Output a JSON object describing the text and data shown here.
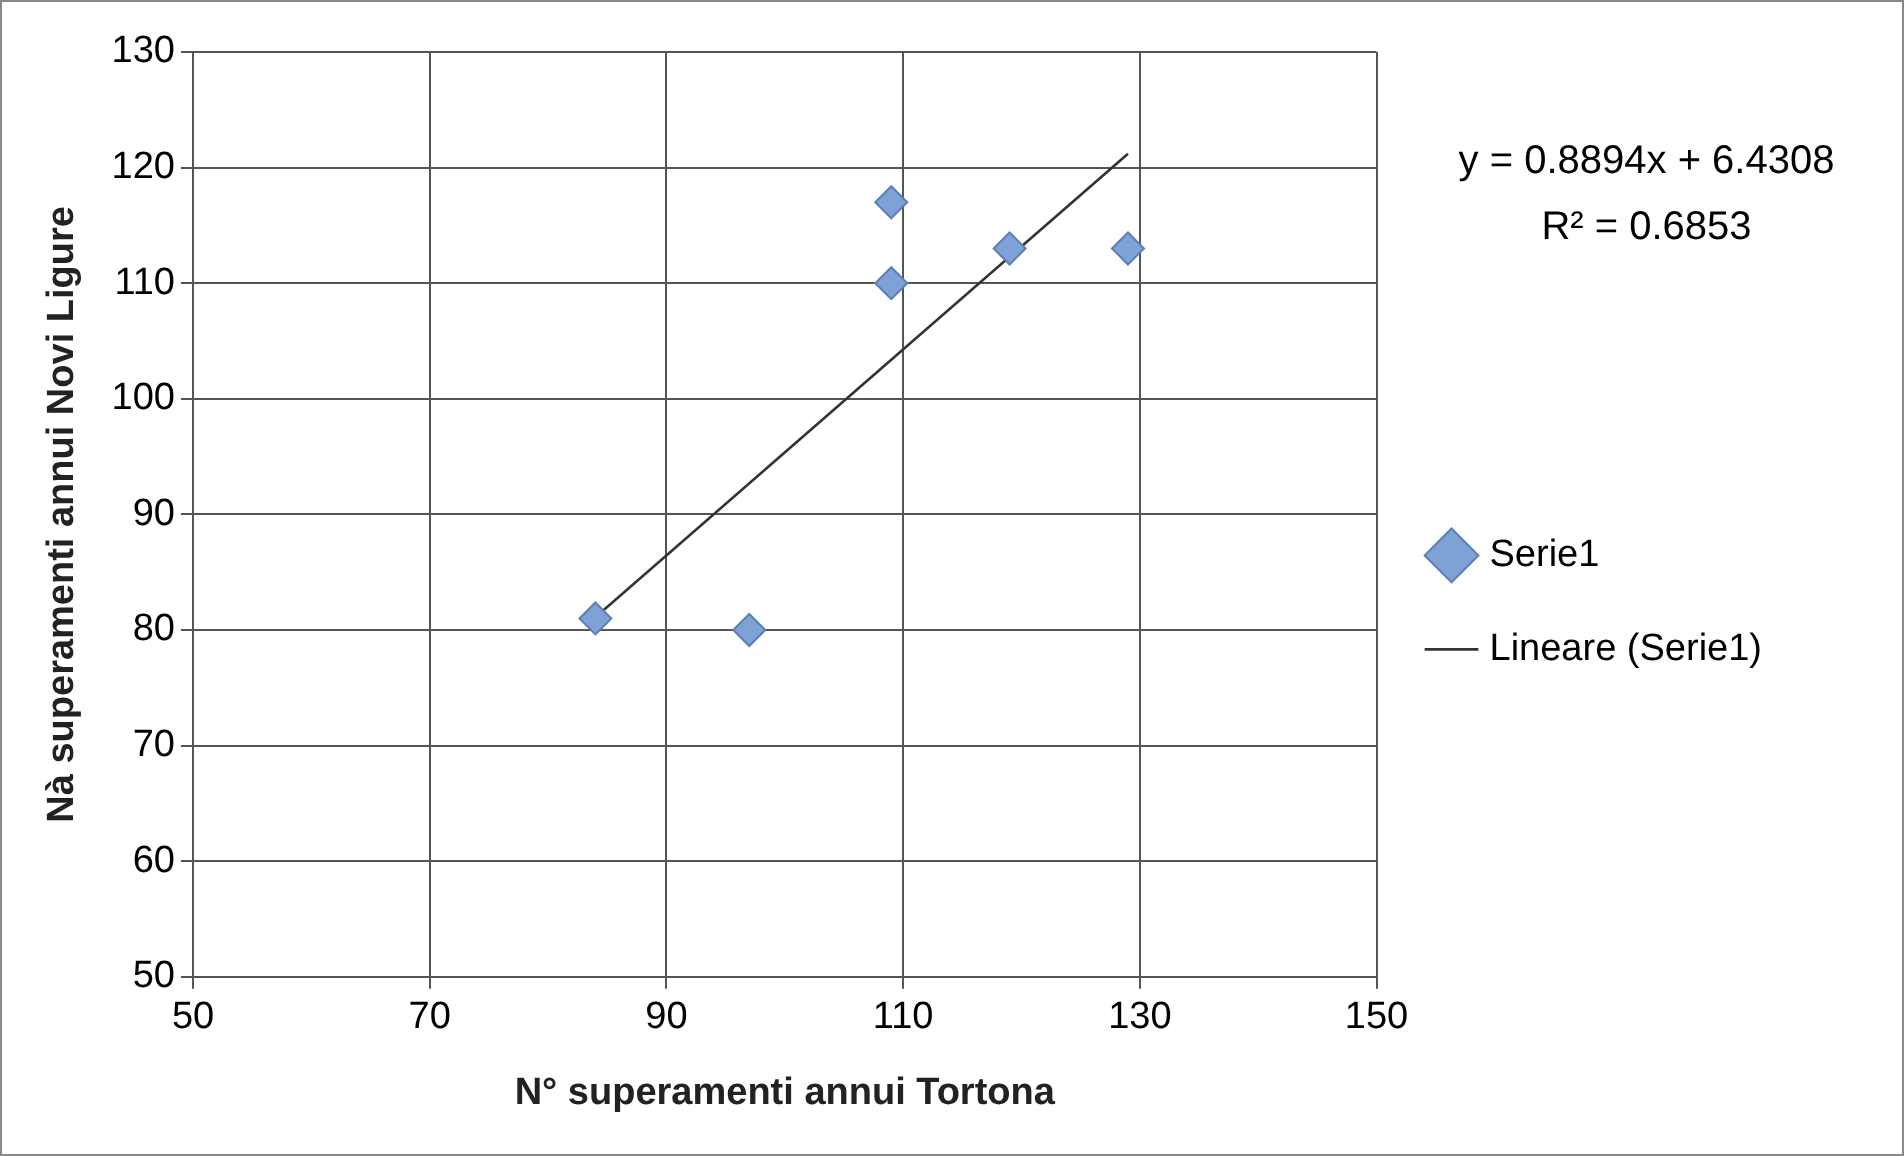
{
  "chart_data": {
    "type": "scatter",
    "xlabel": "N° superamenti annui Tortona",
    "ylabel": "Nà superamenti annui Novi Ligure",
    "xlim": [
      50,
      150
    ],
    "xticks": [
      50,
      70,
      90,
      110,
      130,
      150
    ],
    "ylim": [
      50,
      130
    ],
    "yticks": [
      50,
      60,
      70,
      80,
      90,
      100,
      110,
      120,
      130
    ],
    "grid": true,
    "legend": "right",
    "annotations": [
      "y = 0.8894x + 6.4308",
      "R² = 0.6853"
    ],
    "series": [
      {
        "name": "Serie1",
        "type": "scatter",
        "color": "#7ea1d6",
        "x": [
          84,
          97,
          109,
          109,
          119,
          129
        ],
        "values": [
          81,
          80,
          117,
          110,
          113,
          113
        ],
        "marker": "diamond"
      },
      {
        "name": "Lineare (Serie1)",
        "type": "line",
        "color": "#333333",
        "x": [
          84,
          129
        ],
        "values": [
          81.1,
          121.2
        ],
        "marker": "none",
        "line_style": "solid"
      }
    ]
  }
}
